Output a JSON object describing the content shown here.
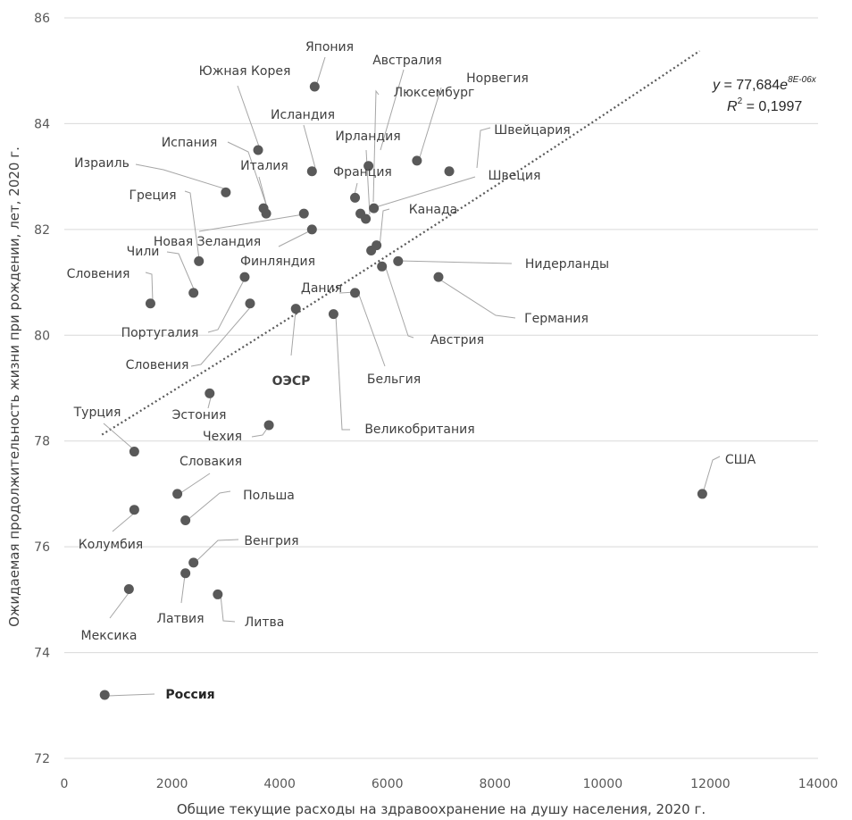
{
  "chart_data": {
    "type": "scatter",
    "xlabel": "Общие текущие расходы на здравоохранение на душу населения, 2020 г.",
    "ylabel": "Ожидаемая продолжительность жизни при рождении, лет, 2020 г.",
    "xlim": [
      0,
      14000
    ],
    "ylim": [
      72,
      86
    ],
    "x_ticks": [
      "0",
      "2000",
      "4000",
      "6000",
      "8000",
      "10000",
      "12000",
      "14000"
    ],
    "y_ticks": [
      "72",
      "74",
      "76",
      "78",
      "80",
      "82",
      "84",
      "86"
    ],
    "grid": "horizontal",
    "legend": "none",
    "marker_color": "#595959",
    "grid_color": "#d9d9d9",
    "trend_color": "#595959",
    "trendline": {
      "type": "exponential",
      "a": 77.684,
      "b": 8e-06,
      "x_range": [
        700,
        11800
      ],
      "equation": {
        "y": "y",
        "rest": " = 77,684",
        "e": "e",
        "exp": "8E-06x",
        "r": "R",
        "r_sup": "2",
        "r_rest": " = 0,1997"
      }
    },
    "points": [
      {
        "label": "Япония",
        "x": 4650,
        "y": 84.7
      },
      {
        "label": "Австралия",
        "x": 5650,
        "y": 83.2
      },
      {
        "label": "Норвегия",
        "x": 6550,
        "y": 83.3
      },
      {
        "label": "Южная Корея",
        "x": 3600,
        "y": 83.5
      },
      {
        "label": "Люксембург",
        "x": 5750,
        "y": 82.4
      },
      {
        "label": "Исландия",
        "x": 4600,
        "y": 83.1
      },
      {
        "label": "Швейцария",
        "x": 7150,
        "y": 83.1
      },
      {
        "label": "Ирландия",
        "x": 5600,
        "y": 82.2
      },
      {
        "label": "Испания",
        "x": 3700,
        "y": 82.4
      },
      {
        "label": "Италия",
        "x": 3750,
        "y": 82.3
      },
      {
        "label": "Израиль",
        "x": 3000,
        "y": 82.7
      },
      {
        "label": "Франция",
        "x": 5400,
        "y": 82.6
      },
      {
        "label": "Швеция",
        "x": 5500,
        "y": 82.3
      },
      {
        "label": "Греция",
        "x": 2500,
        "y": 81.4
      },
      {
        "label": "Канада",
        "x": 5800,
        "y": 81.7
      },
      {
        "label": "Новая Зеландия",
        "x": 4450,
        "y": 82.3
      },
      {
        "label": "Финляндия",
        "x": 4600,
        "y": 82.0
      },
      {
        "label": "Чили",
        "x": 2400,
        "y": 80.8
      },
      {
        "label": "Нидерланды",
        "x": 6200,
        "y": 81.4
      },
      {
        "label": "Словения",
        "x": 1600,
        "y": 80.6
      },
      {
        "label": "Португалия",
        "x": 3350,
        "y": 81.1
      },
      {
        "label": "Дания",
        "x": 5700,
        "y": 81.6
      },
      {
        "label": "Германия",
        "x": 6950,
        "y": 81.1
      },
      {
        "label": "Словения",
        "x": 3450,
        "y": 80.6
      },
      {
        "label": "ОЭСР",
        "x": 4300,
        "y": 80.5
      },
      {
        "label": "Австрия",
        "x": 5900,
        "y": 81.3
      },
      {
        "label": "Бельгия",
        "x": 5400,
        "y": 80.8
      },
      {
        "label": "Эстония",
        "x": 2700,
        "y": 78.9
      },
      {
        "label": "Великобритания",
        "x": 5000,
        "y": 80.4
      },
      {
        "label": "Турция",
        "x": 1300,
        "y": 77.8
      },
      {
        "label": "Чехия",
        "x": 3800,
        "y": 78.3
      },
      {
        "label": "США",
        "x": 11850,
        "y": 77.0
      },
      {
        "label": "Словакия",
        "x": 2100,
        "y": 77.0
      },
      {
        "label": "Польша",
        "x": 2250,
        "y": 76.5
      },
      {
        "label": "Колумбия",
        "x": 1300,
        "y": 76.7
      },
      {
        "label": "Венгрия",
        "x": 2400,
        "y": 75.7
      },
      {
        "label": "Латвия",
        "x": 2250,
        "y": 75.5
      },
      {
        "label": "Мексика",
        "x": 1200,
        "y": 75.2
      },
      {
        "label": "Литва",
        "x": 2850,
        "y": 75.1
      },
      {
        "label": "Россия",
        "x": 750,
        "y": 73.2
      }
    ]
  }
}
